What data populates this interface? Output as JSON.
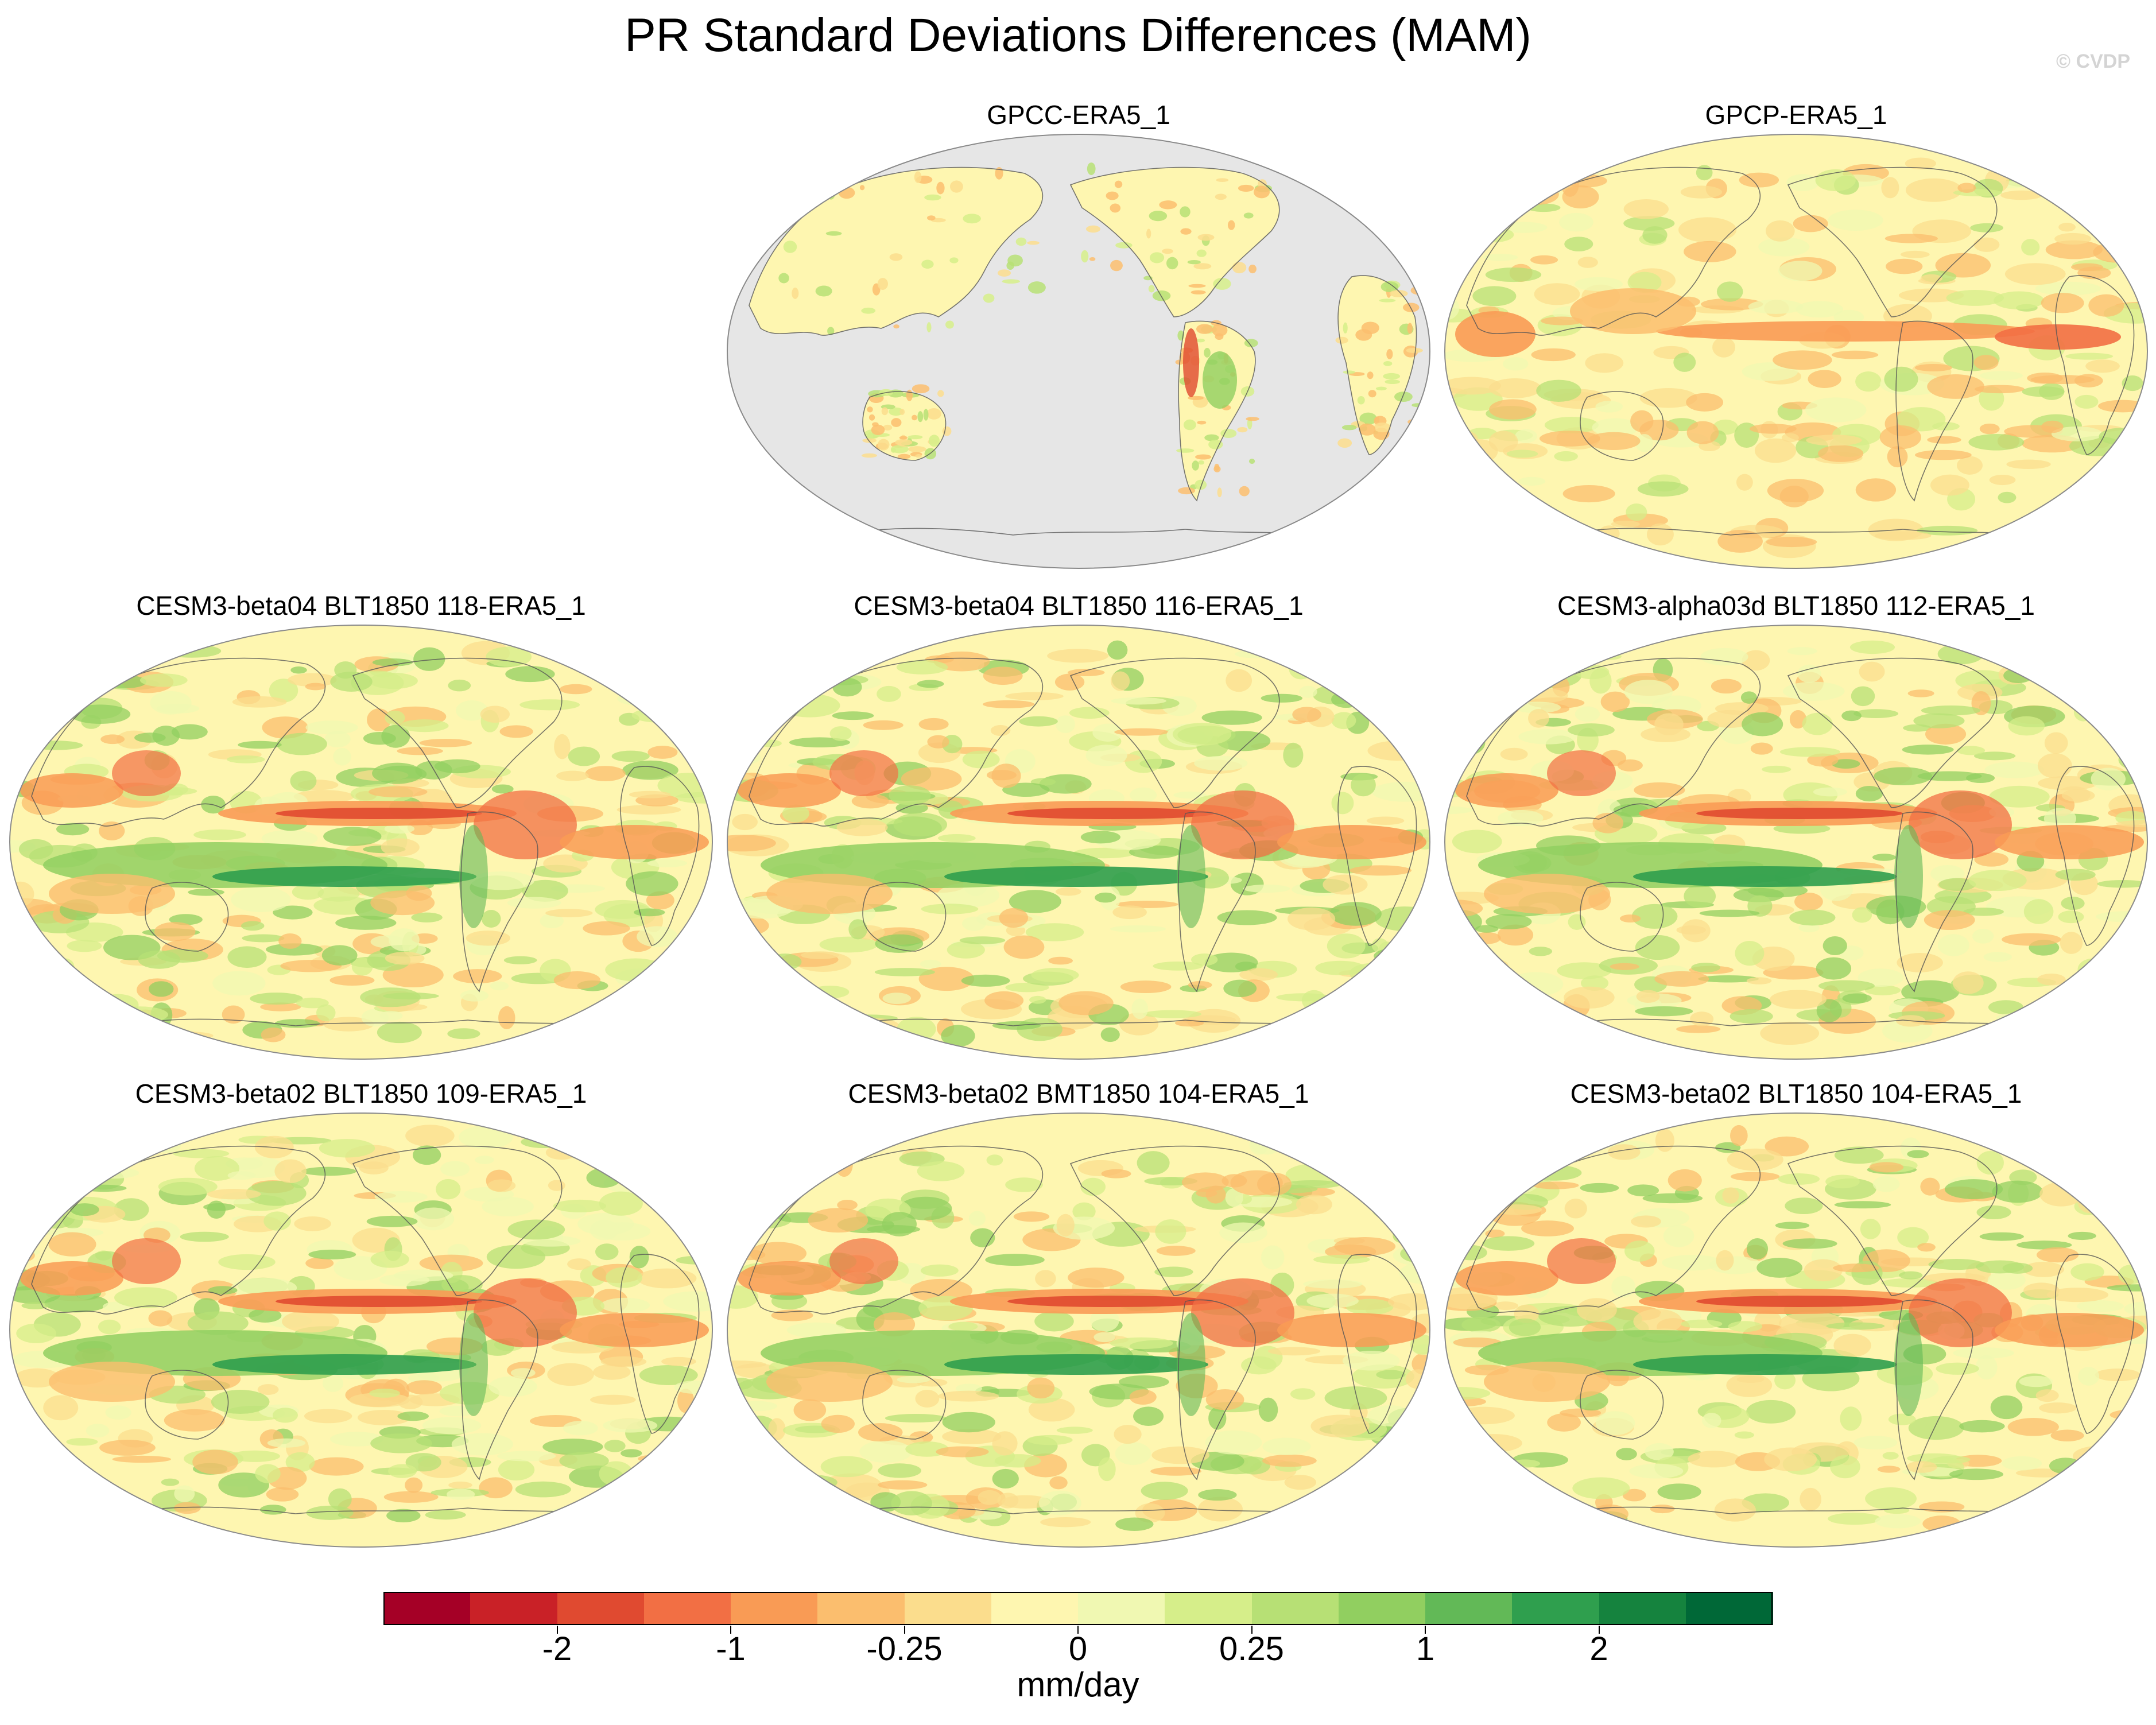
{
  "title": "PR Standard Deviations Differences (MAM)",
  "copyright": "© CVDP",
  "panels": [
    {
      "id": "gpcc",
      "label": "GPCC-ERA5_1",
      "variant": "land"
    },
    {
      "id": "gpcp",
      "label": "GPCP-ERA5_1",
      "variant": "obs"
    },
    {
      "id": "m118",
      "label": "CESM3-beta04 BLT1850 118-ERA5_1",
      "variant": "model"
    },
    {
      "id": "m116",
      "label": "CESM3-beta04 BLT1850 116-ERA5_1",
      "variant": "model"
    },
    {
      "id": "m112",
      "label": "CESM3-alpha03d BLT1850 112-ERA5_1",
      "variant": "model"
    },
    {
      "id": "m109",
      "label": "CESM3-beta02 BLT1850 109-ERA5_1",
      "variant": "model"
    },
    {
      "id": "b104",
      "label": "CESM3-beta02 BMT1850 104-ERA5_1",
      "variant": "model"
    },
    {
      "id": "l104",
      "label": "CESM3-beta02 BLT1850 104-ERA5_1",
      "variant": "model"
    }
  ],
  "colorbar": {
    "colors": [
      "#a50026",
      "#c92127",
      "#e04a30",
      "#f26f44",
      "#f99b55",
      "#fbbe6e",
      "#fbdd8d",
      "#fef6b0",
      "#f0f8b2",
      "#d6ee8a",
      "#b7e075",
      "#91cf60",
      "#62b957",
      "#2f9f4e",
      "#15833e",
      "#006837"
    ],
    "tick_labels": [
      "-2",
      "-1",
      "-0.25",
      "0",
      "0.25",
      "1",
      "2"
    ],
    "units": "mm/day"
  },
  "chart_data": {
    "type": "map-panel-grid",
    "title": "PR Standard Deviations Differences (MAM)",
    "projection": "Robinson, centered on Pacific",
    "variable": "precipitation standard deviation difference vs ERA5_1",
    "colorbar_levels_shown": [
      "-2",
      "-1",
      "-0.25",
      "0",
      "0.25",
      "1",
      "2"
    ],
    "units": "mm/day",
    "panels": [
      "GPCC-ERA5_1",
      "GPCP-ERA5_1",
      "CESM3-beta04 BLT1850 118-ERA5_1",
      "CESM3-beta04 BLT1850 116-ERA5_1",
      "CESM3-alpha03d BLT1850 112-ERA5_1",
      "CESM3-beta02 BLT1850 109-ERA5_1",
      "CESM3-beta02 BMT1850 104-ERA5_1",
      "CESM3-beta02 BLT1850 104-ERA5_1"
    ]
  }
}
